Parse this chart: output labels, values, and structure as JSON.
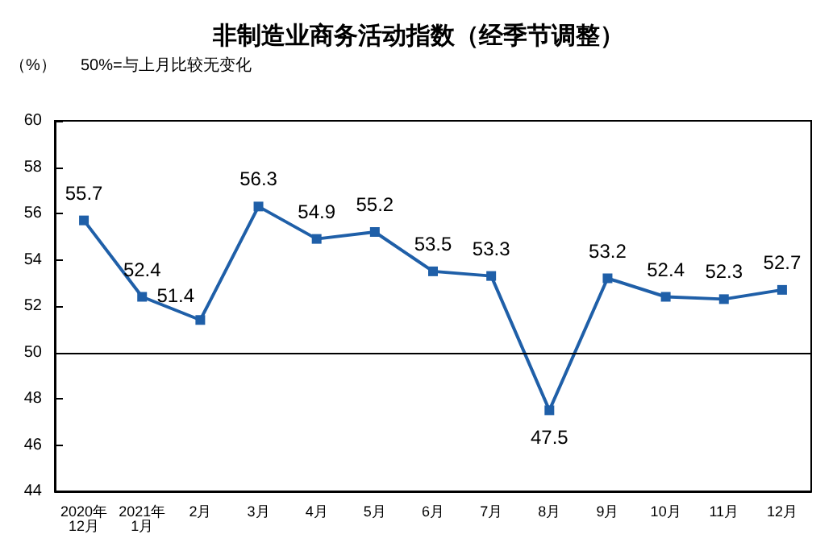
{
  "chart_data": {
    "type": "line",
    "title": "非制造业商务活动指数（经季节调整）",
    "ylabel": "（%）",
    "annotations": [
      "50%=与上月比较无变化"
    ],
    "categories": [
      "2020年\n12月",
      "2021年\n1月",
      "2月",
      "3月",
      "4月",
      "5月",
      "6月",
      "7月",
      "8月",
      "9月",
      "10月",
      "11月",
      "12月"
    ],
    "values": [
      55.7,
      52.4,
      51.4,
      56.3,
      54.9,
      55.2,
      53.5,
      53.3,
      47.5,
      53.2,
      52.4,
      52.3,
      52.7
    ],
    "color": "#1f5fa8",
    "ylim": [
      44,
      60
    ],
    "yticks": [
      44,
      46,
      48,
      50,
      52,
      54,
      56,
      58,
      60
    ],
    "grid": false,
    "marker": "square",
    "line_style": "solid",
    "data_labels": true,
    "ref_lines": [
      {
        "axis": "y",
        "value": 50,
        "color": "#000000",
        "line_style": "solid"
      }
    ]
  }
}
